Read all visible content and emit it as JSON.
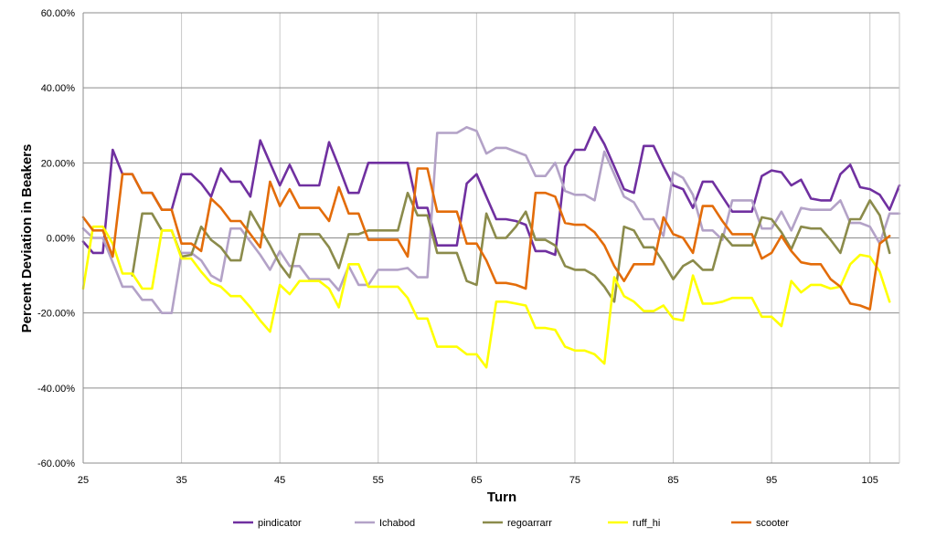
{
  "chart_data": {
    "type": "line",
    "title": "",
    "xlabel": "Turn",
    "ylabel": "Percent Deviation in Beakers",
    "xlim": [
      25,
      108
    ],
    "ylim": [
      -60,
      60
    ],
    "x_ticks": [
      25,
      35,
      45,
      55,
      65,
      75,
      85,
      95,
      105
    ],
    "x_tick_labels": [
      "25",
      "35",
      "45",
      "55",
      "65",
      "75",
      "85",
      "95",
      "105"
    ],
    "y_ticks": [
      -60,
      -40,
      -20,
      0,
      20,
      40,
      60
    ],
    "y_tick_labels": [
      "-60.00%",
      "-40.00%",
      "-20.00%",
      "0.00%",
      "20.00%",
      "40.00%",
      "60.00%"
    ],
    "legend_position": "bottom",
    "x": [
      25,
      26,
      27,
      28,
      29,
      30,
      31,
      32,
      33,
      34,
      35,
      36,
      37,
      38,
      39,
      40,
      41,
      42,
      43,
      44,
      45,
      46,
      47,
      48,
      49,
      50,
      51,
      52,
      53,
      54,
      55,
      56,
      57,
      58,
      59,
      60,
      61,
      62,
      63,
      64,
      65,
      66,
      67,
      68,
      69,
      70,
      71,
      72,
      73,
      74,
      75,
      76,
      77,
      78,
      79,
      80,
      81,
      82,
      83,
      84,
      85,
      86,
      87,
      88,
      89,
      90,
      91,
      92,
      93,
      94,
      95,
      96,
      97,
      98,
      99,
      100,
      101,
      102,
      103,
      104,
      105,
      106,
      107,
      108
    ],
    "series": [
      {
        "name": "pindicator",
        "color": "#7030a0",
        "values": [
          -1,
          -4,
          -4,
          23.5,
          17,
          17,
          12,
          12,
          7.5,
          7.5,
          17,
          17,
          14.5,
          11,
          18.5,
          15,
          15,
          11,
          26,
          20,
          14,
          19.5,
          14,
          14,
          14,
          25.5,
          19,
          12,
          12,
          20,
          20,
          20,
          20,
          20,
          8,
          8,
          -2,
          -2,
          -2,
          14.5,
          17,
          11,
          5,
          5,
          4.5,
          3.5,
          -3.5,
          -3.5,
          -4.5,
          19,
          23.5,
          23.5,
          29.5,
          25,
          19,
          13,
          12,
          24.5,
          24.5,
          19,
          14,
          13,
          8,
          15,
          15,
          11,
          7,
          7,
          7,
          16.5,
          18,
          17.5,
          14,
          15.5,
          10.5,
          10,
          10,
          17,
          19.5,
          13.5,
          13,
          11.5,
          7.5,
          14
        ]
      },
      {
        "name": "Ichabod",
        "color": "#b3a2c7",
        "values": [
          2.5,
          0,
          0,
          -6.5,
          -13,
          -13,
          -16.5,
          -16.5,
          -20,
          -20,
          -4,
          -4,
          -6,
          -10,
          -11.5,
          2.5,
          2.5,
          -1,
          -4.5,
          -8.5,
          -3.5,
          -7.5,
          -7.5,
          -11,
          -11,
          -11,
          -14,
          -7.5,
          -12.5,
          -12.5,
          -8.5,
          -8.5,
          -8.5,
          -8,
          -10.5,
          -10.5,
          28,
          28,
          28,
          29.5,
          28.5,
          22.5,
          24,
          24,
          23,
          22,
          16.5,
          16.5,
          20,
          12.5,
          11.5,
          11.5,
          10,
          23,
          17,
          11,
          9.5,
          5,
          5,
          0.5,
          17.5,
          16,
          11.5,
          2,
          2,
          -0.5,
          10,
          10,
          10,
          2.5,
          2.5,
          7,
          2,
          8,
          7.5,
          7.5,
          7.5,
          10,
          4,
          4,
          3,
          -1.5,
          6.5,
          6.5
        ]
      },
      {
        "name": "regoarrarr",
        "color": "#8b8b4b",
        "values": [
          null,
          null,
          null,
          null,
          null,
          -10,
          6.5,
          6.5,
          2,
          2,
          -5,
          -4.5,
          3,
          -0.5,
          -2.5,
          -6,
          -6,
          7,
          2.5,
          -2,
          -7,
          -10.5,
          1,
          1,
          1,
          -2.5,
          -8,
          1,
          1,
          2,
          2,
          2,
          2,
          12,
          6,
          6,
          -4,
          -4,
          -4,
          -11.5,
          -12.5,
          6.5,
          0,
          0,
          3,
          7,
          -0.5,
          -0.5,
          -2,
          -7.5,
          -8.5,
          -8.5,
          -10,
          -13,
          -17,
          3,
          2,
          -2.5,
          -2.5,
          -6.5,
          -11,
          -7.5,
          -6,
          -8.5,
          -8.5,
          1,
          -2,
          -2,
          -2,
          5.5,
          5,
          1.5,
          -3,
          3,
          2.5,
          2.5,
          -0.5,
          -4,
          5,
          5,
          10,
          6,
          -4,
          null
        ]
      },
      {
        "name": "ruff_hi",
        "color": "#ffff00",
        "values": [
          -13.5,
          3,
          3,
          -1.5,
          -9.5,
          -9.5,
          -13.5,
          -13.5,
          2,
          2,
          -5.5,
          -5.5,
          -9,
          -12,
          -13,
          -15.5,
          -15.5,
          -18.5,
          -22,
          -25,
          -12.5,
          -15,
          -11.5,
          -11.5,
          -11.5,
          -13.5,
          -18.5,
          -7,
          -7,
          -13,
          -13,
          -13,
          -13,
          -16,
          -21.5,
          -21.5,
          -29,
          -29,
          -29,
          -31,
          -31,
          -34.5,
          -17,
          -17,
          -17.5,
          -18,
          -24,
          -24,
          -24.5,
          -29,
          -30,
          -30,
          -31,
          -33.5,
          -10.5,
          -15.5,
          -17,
          -19.5,
          -19.5,
          -18,
          -21.5,
          -22,
          -10,
          -17.5,
          -17.5,
          -17,
          -16,
          -16,
          -16,
          -21,
          -21,
          -23.5,
          -11.5,
          -14.5,
          -12.5,
          -12.5,
          -13.5,
          -13,
          -7,
          -4.5,
          -5,
          -9,
          -17,
          null
        ]
      },
      {
        "name": "scooter",
        "color": "#e36c09",
        "values": [
          5.5,
          2,
          2,
          -5,
          17,
          17,
          12,
          12,
          7.5,
          7.5,
          -1.5,
          -1.5,
          -3.5,
          10.5,
          8,
          4.5,
          4.5,
          1,
          -2.5,
          15,
          8.5,
          13,
          8,
          8,
          8,
          4.5,
          13.5,
          6.5,
          6.5,
          -0.5,
          -0.5,
          -0.5,
          -0.5,
          -5,
          18.5,
          18.5,
          7,
          7,
          7,
          -1.5,
          -1.5,
          -6,
          -12,
          -12,
          -12.5,
          -13.5,
          12,
          12,
          11,
          4,
          3.5,
          3.5,
          1.5,
          -2,
          -7.5,
          -11.5,
          -7,
          -7,
          -7,
          5.5,
          1,
          0,
          -4,
          8.5,
          8.5,
          4.5,
          1,
          1,
          1,
          -5.5,
          -4,
          0.5,
          -3.5,
          -6.5,
          -7,
          -7,
          -11,
          -13,
          -17.5,
          -18,
          -19,
          -1.5,
          0.5,
          null
        ]
      }
    ]
  }
}
